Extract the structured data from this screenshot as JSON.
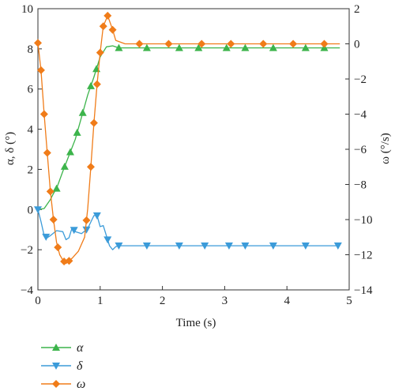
{
  "chart_data": {
    "type": "line",
    "xlabel": "Time (s)",
    "ylabel_left": "α, δ (°)",
    "ylabel_right": "ω (°/s)",
    "xlim": [
      0,
      5
    ],
    "ylim_left": [
      -4,
      10
    ],
    "ylim_right": [
      -14,
      2
    ],
    "xticks": [
      "0",
      "1",
      "2",
      "3",
      "4",
      "5"
    ],
    "yticks_left": [
      "−4",
      "−2",
      "0",
      "2",
      "4",
      "6",
      "8",
      "10"
    ],
    "yticks_right": [
      "−14",
      "−12",
      "−10",
      "−8",
      "−6",
      "−4",
      "−2",
      "0",
      "2"
    ],
    "grid": false,
    "legend_position": "bottom-left below plot",
    "series": [
      {
        "name": "α",
        "axis": "left",
        "color": "#3cb44b",
        "marker": "triangle-up",
        "points": [
          [
            0,
            0
          ],
          [
            0.1,
            0.05
          ],
          [
            0.2,
            0.5
          ],
          [
            0.25,
            0.8
          ],
          [
            0.3,
            1.05
          ],
          [
            0.4,
            1.9
          ],
          [
            0.5,
            2.7
          ],
          [
            0.6,
            3.5
          ],
          [
            0.7,
            4.6
          ],
          [
            0.8,
            5.7
          ],
          [
            0.9,
            6.6
          ],
          [
            1.0,
            7.6
          ],
          [
            1.1,
            8.1
          ],
          [
            1.2,
            8.15
          ],
          [
            1.3,
            8.05
          ],
          [
            1.5,
            8.05
          ],
          [
            2.0,
            8.05
          ],
          [
            3.0,
            8.05
          ],
          [
            4.0,
            8.05
          ],
          [
            4.85,
            8.05
          ]
        ],
        "markers_x": [
          0.3,
          0.43,
          0.52,
          0.63,
          0.72,
          0.85,
          0.94,
          1.3,
          1.75,
          2.27,
          2.58,
          3.03,
          3.33,
          3.78,
          4.3,
          4.6
        ]
      },
      {
        "name": "δ",
        "axis": "left",
        "color": "#3b9bd9",
        "marker": "triangle-down",
        "points": [
          [
            0,
            0
          ],
          [
            0.05,
            -0.6
          ],
          [
            0.1,
            -1.3
          ],
          [
            0.15,
            -1.4
          ],
          [
            0.2,
            -1.3
          ],
          [
            0.3,
            -1.05
          ],
          [
            0.4,
            -1.1
          ],
          [
            0.45,
            -1.5
          ],
          [
            0.5,
            -1.4
          ],
          [
            0.55,
            -0.9
          ],
          [
            0.6,
            -1.1
          ],
          [
            0.7,
            -1.2
          ],
          [
            0.8,
            -0.95
          ],
          [
            0.9,
            -0.3
          ],
          [
            0.95,
            -0.3
          ],
          [
            1.0,
            -0.85
          ],
          [
            1.05,
            -0.8
          ],
          [
            1.15,
            -1.8
          ],
          [
            1.2,
            -2.0
          ],
          [
            1.25,
            -1.85
          ],
          [
            1.3,
            -1.8
          ],
          [
            1.5,
            -1.8
          ],
          [
            2.0,
            -1.8
          ],
          [
            3.0,
            -1.8
          ],
          [
            4.0,
            -1.8
          ],
          [
            4.85,
            -1.8
          ]
        ],
        "markers_x": [
          0.0,
          0.13,
          0.58,
          0.78,
          0.95,
          1.12,
          1.3,
          1.75,
          2.27,
          2.68,
          3.07,
          3.33,
          3.78,
          4.3,
          4.82
        ]
      },
      {
        "name": "ω",
        "axis": "right",
        "color": "#f07c19",
        "marker": "diamond",
        "points": [
          [
            0,
            0.05
          ],
          [
            0.05,
            -1.5
          ],
          [
            0.1,
            -4.0
          ],
          [
            0.15,
            -6.2
          ],
          [
            0.2,
            -8.4
          ],
          [
            0.25,
            -10.0
          ],
          [
            0.3,
            -11.3
          ],
          [
            0.35,
            -12.0
          ],
          [
            0.4,
            -12.3
          ],
          [
            0.45,
            -12.5
          ],
          [
            0.55,
            -12.2
          ],
          [
            0.65,
            -11.8
          ],
          [
            0.75,
            -11.0
          ],
          [
            0.8,
            -9.4
          ],
          [
            0.85,
            -7.0
          ],
          [
            0.9,
            -4.5
          ],
          [
            0.95,
            -2.3
          ],
          [
            1.0,
            -0.5
          ],
          [
            1.05,
            1.0
          ],
          [
            1.12,
            1.6
          ],
          [
            1.2,
            0.8
          ],
          [
            1.25,
            0.2
          ],
          [
            1.4,
            0.0
          ],
          [
            1.6,
            0.0
          ],
          [
            2.0,
            0.0
          ],
          [
            3.0,
            0.0
          ],
          [
            4.0,
            0.0
          ],
          [
            4.85,
            0.0
          ]
        ],
        "markers_x": [
          0.0,
          0.05,
          0.1,
          0.15,
          0.2,
          0.25,
          0.32,
          0.42,
          0.5,
          0.78,
          0.85,
          0.9,
          0.95,
          1.0,
          1.05,
          1.12,
          1.2,
          1.63,
          2.1,
          2.63,
          3.1,
          3.62,
          4.1,
          4.6
        ]
      }
    ]
  }
}
